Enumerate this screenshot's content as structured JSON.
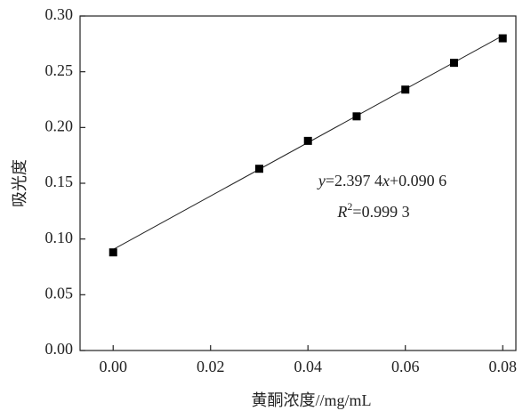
{
  "chart_data": {
    "type": "scatter",
    "x_label": "黄酮浓度//mg/mL",
    "y_label": "吸光度",
    "x": [
      0.0,
      0.03,
      0.04,
      0.05,
      0.06,
      0.07,
      0.08
    ],
    "values": [
      0.088,
      0.163,
      0.188,
      0.21,
      0.234,
      0.258,
      0.28
    ],
    "color": "#000000",
    "fit_line": {
      "x": [
        0.0,
        0.08
      ],
      "values": [
        0.0906,
        0.2824
      ]
    },
    "annotations": [
      [
        "y",
        "=2.397 4",
        "x",
        "+0.090 6"
      ],
      [
        "R",
        "2",
        "=0.999 3"
      ]
    ],
    "xlim": [
      -0.0068,
      0.0827
    ],
    "ylim": [
      0,
      0.3
    ],
    "xticks": [
      {
        "value": 0,
        "label": "0.00"
      },
      {
        "value": 0.02,
        "label": "0.02"
      },
      {
        "value": 0.04,
        "label": "0.04"
      },
      {
        "value": 0.06,
        "label": "0.06"
      },
      {
        "value": 0.08,
        "label": "0.08"
      }
    ],
    "yticks": [
      {
        "value": 0,
        "label": "0.00"
      },
      {
        "value": 0.05,
        "label": "0.05"
      },
      {
        "value": 0.1,
        "label": "0.10"
      },
      {
        "value": 0.15,
        "label": "0.15"
      },
      {
        "value": 0.2,
        "label": "0.20"
      },
      {
        "value": 0.25,
        "label": "0.25"
      },
      {
        "value": 0.3,
        "label": "0.30"
      }
    ]
  }
}
